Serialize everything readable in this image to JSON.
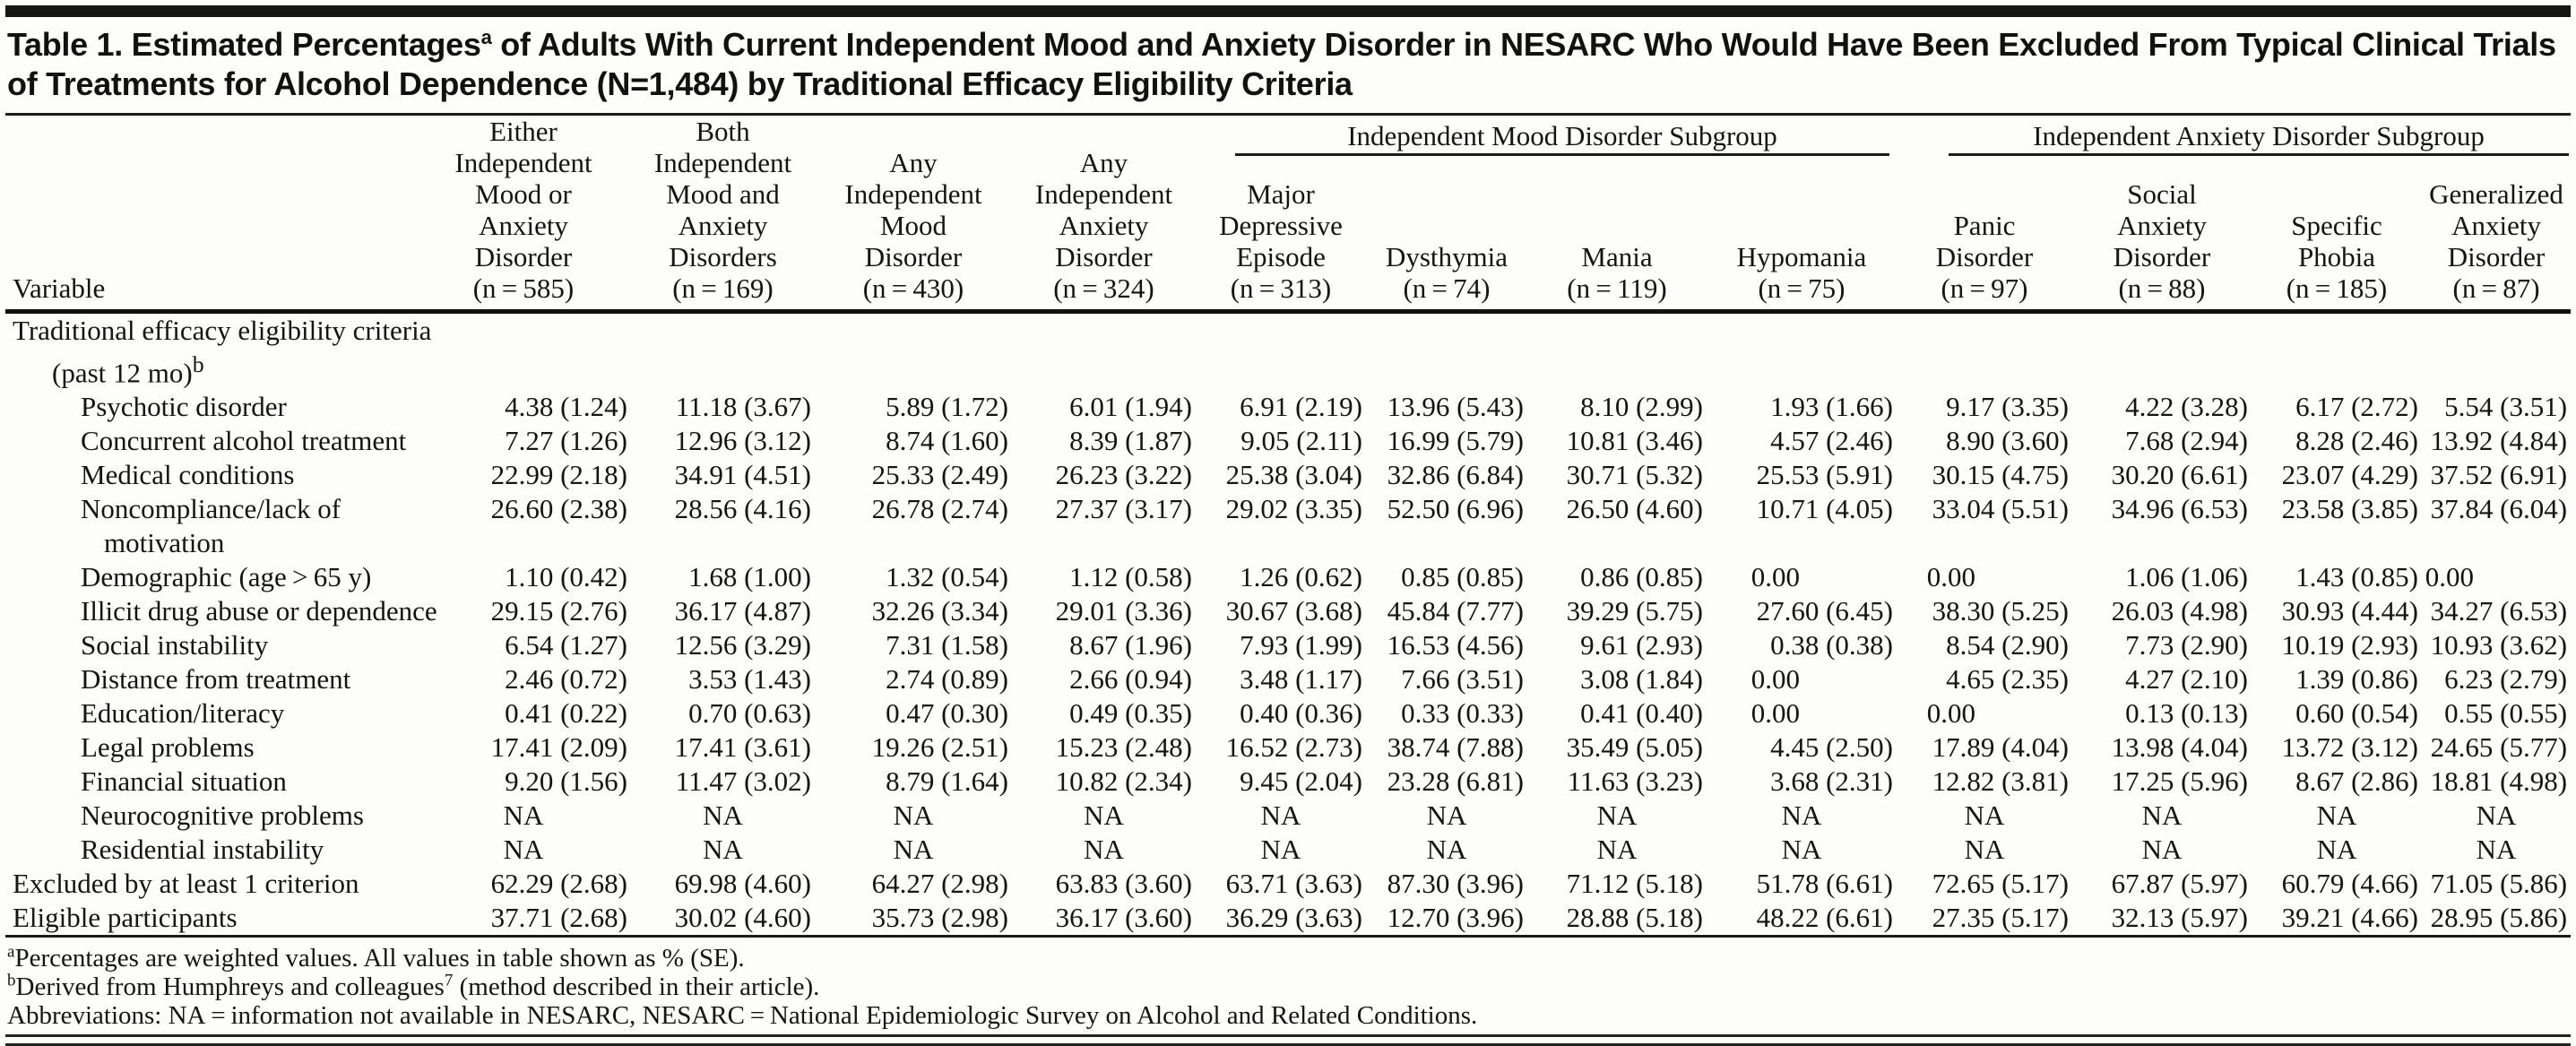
{
  "colors": {
    "text": "#141414",
    "rules": "#1a1a1a",
    "title_bar": "#161616",
    "background": "#fdfdfc"
  },
  "title": {
    "pre": "Table 1. Estimated Percentages",
    "sup": "a",
    "post": " of Adults With Current Independent Mood and Anxiety Disorder in NESARC Who Would Have Been Excluded From Typical Clinical Trials of Treatments for Alcohol Dependence (N=1,484) by Traditional Efficacy Eligibility Criteria"
  },
  "table": {
    "variable_header": "Variable",
    "groups": [
      {
        "label": "Independent Mood Disorder Subgroup",
        "span": 4
      },
      {
        "label": "Independent Anxiety Disorder Subgroup",
        "span": 4
      }
    ],
    "columns": [
      {
        "lines": [
          "Either",
          "Independent",
          "Mood or",
          "Anxiety",
          "Disorder",
          "(n = 585)"
        ]
      },
      {
        "lines": [
          "Both",
          "Independent",
          "Mood and",
          "Anxiety",
          "Disorders",
          "(n = 169)"
        ]
      },
      {
        "lines": [
          "Any",
          "Independent",
          "Mood",
          "Disorder",
          "(n = 430)"
        ]
      },
      {
        "lines": [
          "Any",
          "Independent",
          "Anxiety",
          "Disorder",
          "(n = 324)"
        ]
      },
      {
        "lines": [
          "Major",
          "Depressive",
          "Episode",
          "(n = 313)"
        ]
      },
      {
        "lines": [
          "Dysthymia",
          "(n = 74)"
        ]
      },
      {
        "lines": [
          "Mania",
          "(n = 119)"
        ]
      },
      {
        "lines": [
          "Hypomania",
          "(n = 75)"
        ]
      },
      {
        "lines": [
          "Panic",
          "Disorder",
          "(n = 97)"
        ]
      },
      {
        "lines": [
          "Social",
          "Anxiety",
          "Disorder",
          "(n = 88)"
        ]
      },
      {
        "lines": [
          "Specific",
          "Phobia",
          "(n = 185)"
        ]
      },
      {
        "lines": [
          "Generalized",
          "Anxiety",
          "Disorder",
          "(n = 87)"
        ]
      }
    ],
    "rows": [
      {
        "label": "Traditional efficacy eligibility criteria",
        "indent": 0,
        "values": null
      },
      {
        "label": "(past 12 mo)",
        "label_sup": "b",
        "indent": 1,
        "values": null
      },
      {
        "label": "Psychotic disorder",
        "indent": 2,
        "values": [
          "4.38 (1.24)",
          "11.18 (3.67)",
          "5.89 (1.72)",
          "6.01 (1.94)",
          "6.91 (2.19)",
          "13.96 (5.43)",
          "8.10 (2.99)",
          "1.93 (1.66)",
          "9.17 (3.35)",
          "4.22 (3.28)",
          "6.17 (2.72)",
          "5.54 (3.51)"
        ]
      },
      {
        "label": "Concurrent alcohol treatment",
        "indent": 2,
        "values": [
          "7.27 (1.26)",
          "12.96 (3.12)",
          "8.74 (1.60)",
          "8.39 (1.87)",
          "9.05 (2.11)",
          "16.99 (5.79)",
          "10.81 (3.46)",
          "4.57 (2.46)",
          "8.90 (3.60)",
          "7.68 (2.94)",
          "8.28 (2.46)",
          "13.92 (4.84)"
        ]
      },
      {
        "label": "Medical conditions",
        "indent": 2,
        "values": [
          "22.99 (2.18)",
          "34.91 (4.51)",
          "25.33 (2.49)",
          "26.23 (3.22)",
          "25.38 (3.04)",
          "32.86 (6.84)",
          "30.71 (5.32)",
          "25.53 (5.91)",
          "30.15 (4.75)",
          "30.20 (6.61)",
          "23.07 (4.29)",
          "37.52 (6.91)"
        ]
      },
      {
        "label": "Noncompliance/lack of",
        "indent": 2,
        "values": [
          "26.60 (2.38)",
          "28.56 (4.16)",
          "26.78 (2.74)",
          "27.37 (3.17)",
          "29.02 (3.35)",
          "52.50 (6.96)",
          "26.50 (4.60)",
          "10.71 (4.05)",
          "33.04 (5.51)",
          "34.96 (6.53)",
          "23.58 (3.85)",
          "37.84 (6.04)"
        ]
      },
      {
        "label": "motivation",
        "indent": 3,
        "values": null
      },
      {
        "label": "Demographic (age > 65 y)",
        "indent": 2,
        "values": [
          "1.10 (0.42)",
          "1.68 (1.00)",
          "1.32 (0.54)",
          "1.12 (0.58)",
          "1.26 (0.62)",
          "0.85 (0.85)",
          "0.86 (0.85)",
          "0.00",
          "0.00",
          "1.06 (1.06)",
          "1.43 (0.85)",
          "0.00"
        ]
      },
      {
        "label": "Illicit drug abuse or dependence",
        "indent": 2,
        "values": [
          "29.15 (2.76)",
          "36.17 (4.87)",
          "32.26 (3.34)",
          "29.01 (3.36)",
          "30.67 (3.68)",
          "45.84 (7.77)",
          "39.29 (5.75)",
          "27.60 (6.45)",
          "38.30 (5.25)",
          "26.03 (4.98)",
          "30.93 (4.44)",
          "34.27 (6.53)"
        ]
      },
      {
        "label": "Social instability",
        "indent": 2,
        "values": [
          "6.54 (1.27)",
          "12.56 (3.29)",
          "7.31 (1.58)",
          "8.67 (1.96)",
          "7.93 (1.99)",
          "16.53 (4.56)",
          "9.61 (2.93)",
          "0.38 (0.38)",
          "8.54 (2.90)",
          "7.73 (2.90)",
          "10.19 (2.93)",
          "10.93 (3.62)"
        ]
      },
      {
        "label": "Distance from treatment",
        "indent": 2,
        "values": [
          "2.46 (0.72)",
          "3.53 (1.43)",
          "2.74 (0.89)",
          "2.66 (0.94)",
          "3.48 (1.17)",
          "7.66 (3.51)",
          "3.08 (1.84)",
          "0.00",
          "4.65 (2.35)",
          "4.27 (2.10)",
          "1.39 (0.86)",
          "6.23 (2.79)"
        ]
      },
      {
        "label": "Education/literacy",
        "indent": 2,
        "values": [
          "0.41 (0.22)",
          "0.70 (0.63)",
          "0.47 (0.30)",
          "0.49 (0.35)",
          "0.40 (0.36)",
          "0.33 (0.33)",
          "0.41 (0.40)",
          "0.00",
          "0.00",
          "0.13 (0.13)",
          "0.60 (0.54)",
          "0.55 (0.55)"
        ]
      },
      {
        "label": "Legal problems",
        "indent": 2,
        "values": [
          "17.41 (2.09)",
          "17.41 (3.61)",
          "19.26 (2.51)",
          "15.23 (2.48)",
          "16.52 (2.73)",
          "38.74 (7.88)",
          "35.49 (5.05)",
          "4.45 (2.50)",
          "17.89 (4.04)",
          "13.98 (4.04)",
          "13.72 (3.12)",
          "24.65 (5.77)"
        ]
      },
      {
        "label": "Financial situation",
        "indent": 2,
        "values": [
          "9.20 (1.56)",
          "11.47 (3.02)",
          "8.79 (1.64)",
          "10.82 (2.34)",
          "9.45 (2.04)",
          "23.28 (6.81)",
          "11.63 (3.23)",
          "3.68 (2.31)",
          "12.82 (3.81)",
          "17.25 (5.96)",
          "8.67 (2.86)",
          "18.81 (4.98)"
        ]
      },
      {
        "label": "Neurocognitive problems",
        "indent": 2,
        "values": [
          "NA",
          "NA",
          "NA",
          "NA",
          "NA",
          "NA",
          "NA",
          "NA",
          "NA",
          "NA",
          "NA",
          "NA"
        ]
      },
      {
        "label": "Residential instability",
        "indent": 2,
        "values": [
          "NA",
          "NA",
          "NA",
          "NA",
          "NA",
          "NA",
          "NA",
          "NA",
          "NA",
          "NA",
          "NA",
          "NA"
        ]
      },
      {
        "label": "Excluded by at least 1 criterion",
        "indent": 0,
        "values": [
          "62.29 (2.68)",
          "69.98 (4.60)",
          "64.27 (2.98)",
          "63.83 (3.60)",
          "63.71 (3.63)",
          "87.30 (3.96)",
          "71.12 (5.18)",
          "51.78 (6.61)",
          "72.65 (5.17)",
          "67.87 (5.97)",
          "60.79 (4.66)",
          "71.05 (5.86)"
        ]
      },
      {
        "label": "Eligible participants",
        "indent": 0,
        "values": [
          "37.71 (2.68)",
          "30.02 (4.60)",
          "35.73 (2.98)",
          "36.17 (3.60)",
          "36.29 (3.63)",
          "12.70 (3.96)",
          "28.88 (5.18)",
          "48.22 (6.61)",
          "27.35 (5.17)",
          "32.13 (5.97)",
          "39.21 (4.66)",
          "28.95 (5.86)"
        ]
      }
    ]
  },
  "footnotes": [
    [
      {
        "sup": "a"
      },
      {
        "text": "Percentages are weighted values. All values in table shown as % (SE)."
      }
    ],
    [
      {
        "sup": "b"
      },
      {
        "text": "Derived from Humphreys and colleagues"
      },
      {
        "sup": "7"
      },
      {
        "text": " (method described in their article)."
      }
    ],
    [
      {
        "text": "Abbreviations: NA = information not available in NESARC, NESARC = National Epidemiologic Survey on Alcohol and Related Conditions."
      }
    ]
  ]
}
